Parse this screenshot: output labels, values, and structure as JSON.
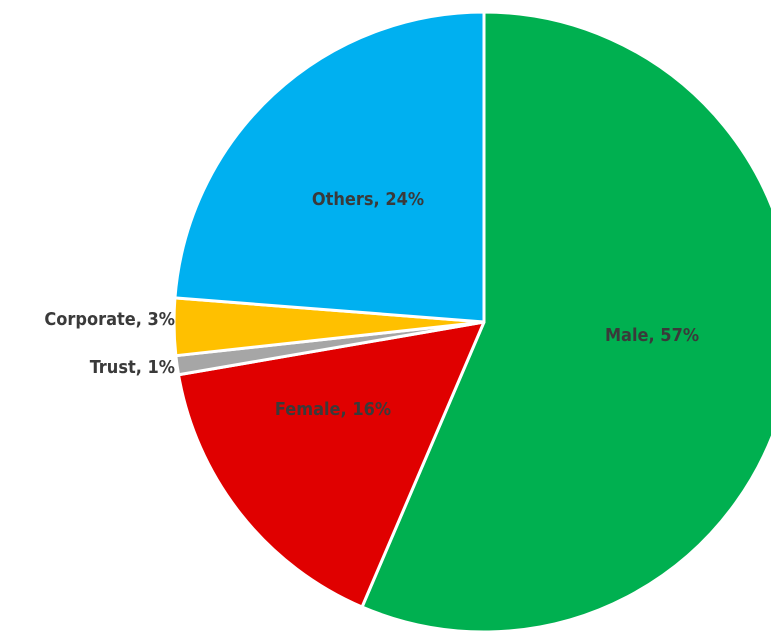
{
  "chart_data": {
    "type": "pie",
    "values": [
      57,
      16,
      1,
      3,
      24
    ],
    "value_labels": [
      "Male, 57%",
      "Female, 16%",
      "Trust, 1%",
      "Corporate,  3%",
      "Others, 24%"
    ],
    "colors": [
      "#00b050",
      "#e00000",
      "#a6a6a6",
      "#ffc000",
      "#00b0f0"
    ],
    "start_angle": 0,
    "direction": "clockwise"
  }
}
